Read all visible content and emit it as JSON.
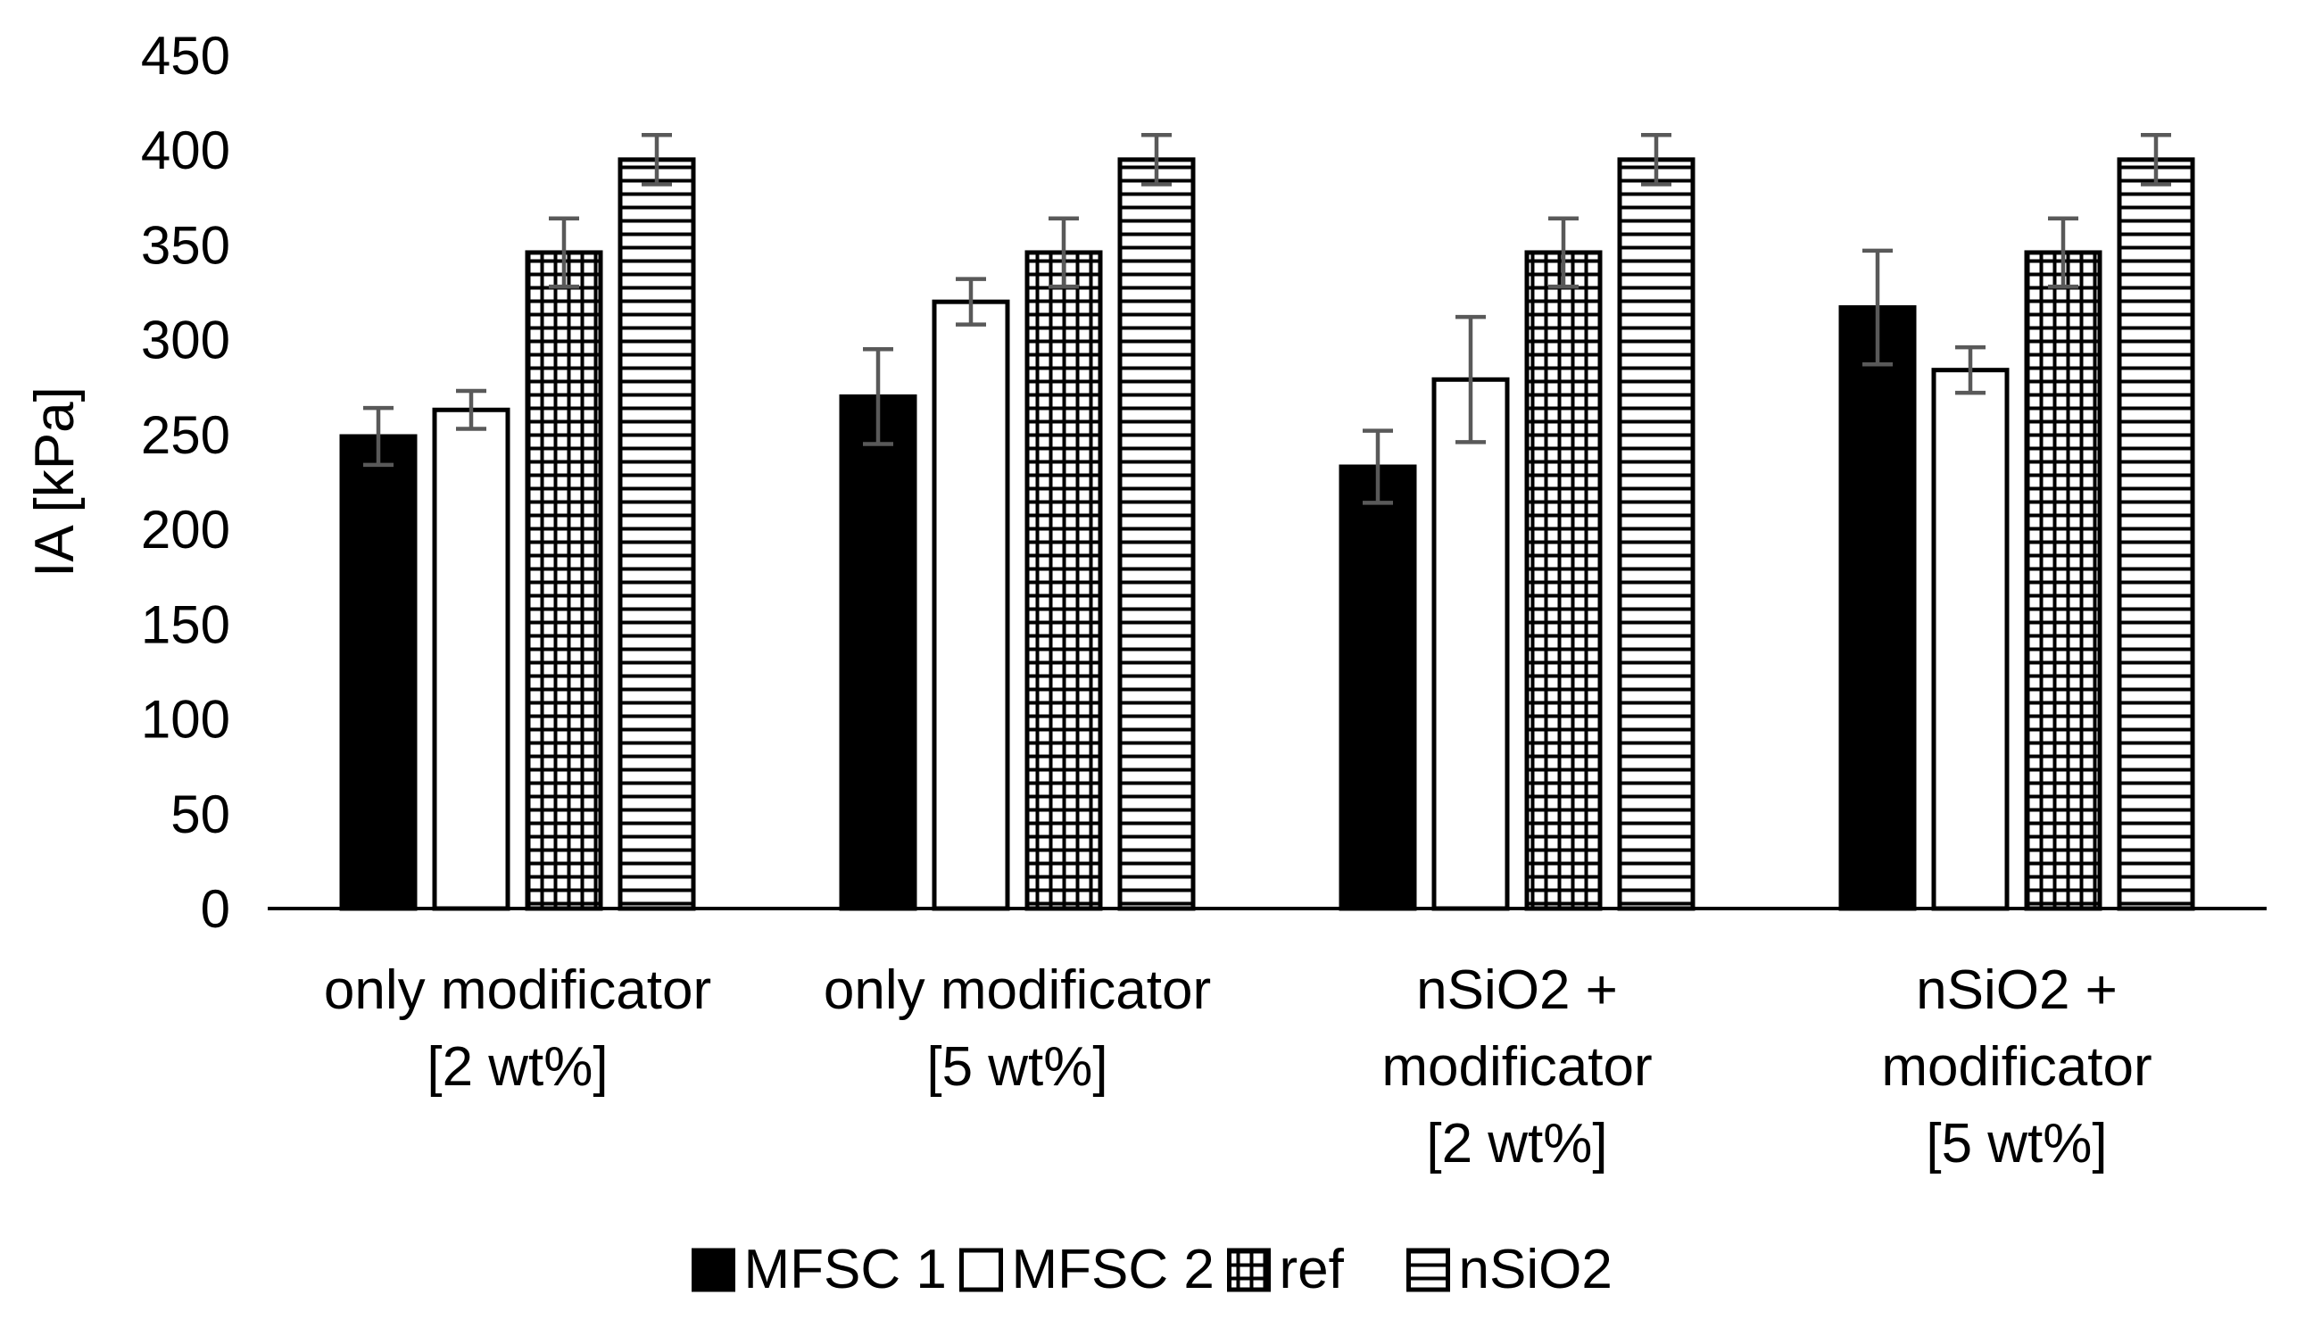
{
  "chart_data": {
    "type": "bar",
    "title": "",
    "xlabel": "",
    "ylabel": "IA [kPa]",
    "ylim": [
      0,
      450
    ],
    "yticks": [
      0,
      50,
      100,
      150,
      200,
      250,
      300,
      350,
      400,
      450
    ],
    "grid": false,
    "legend_position": "bottom",
    "categories": [
      [
        "only modificator",
        "[2 wt%]"
      ],
      [
        "only modificator",
        "[5 wt%]"
      ],
      [
        "nSiO2 +",
        "modificator",
        "[2 wt%]"
      ],
      [
        "nSiO2 +",
        "modificator",
        "[5 wt%]"
      ]
    ],
    "series": [
      {
        "name": "MFSC 1",
        "pattern": "solid",
        "color": "#000000",
        "values": [
          249,
          270,
          233,
          317
        ],
        "errors": [
          15,
          25,
          19,
          30
        ]
      },
      {
        "name": "MFSC 2",
        "pattern": "empty",
        "color": "#ffffff",
        "values": [
          263,
          320,
          279,
          284
        ],
        "errors": [
          10,
          12,
          33,
          12
        ]
      },
      {
        "name": "ref",
        "pattern": "grid",
        "color": "#ffffff",
        "values": [
          346,
          346,
          346,
          346
        ],
        "errors": [
          18,
          18,
          18,
          18
        ]
      },
      {
        "name": "nSiO2",
        "pattern": "horizontal-lines",
        "color": "#ffffff",
        "values": [
          395,
          395,
          395,
          395
        ],
        "errors": [
          13,
          13,
          13,
          13
        ]
      }
    ],
    "error_bar_color": "#595959"
  }
}
